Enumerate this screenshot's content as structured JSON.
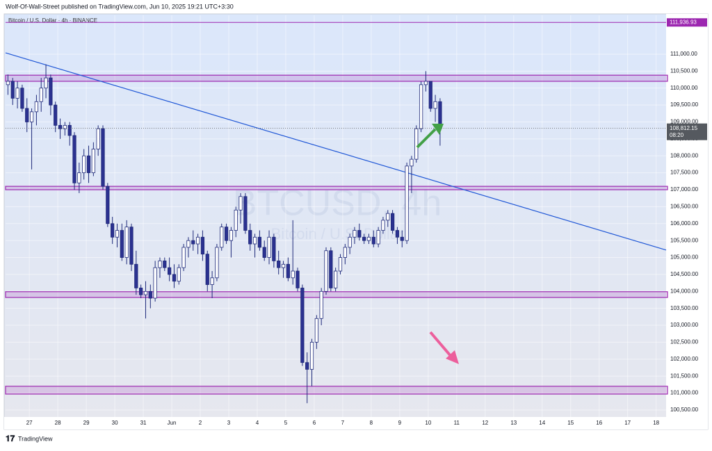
{
  "header": "Wolf-Of-Wall-Street published on TradingView.com, Jun 10, 2025 19:21 UTC+3:30",
  "footer": "TradingView",
  "chart_data": {
    "type": "candlestick",
    "symbol": "Bitcoin / U.S. Dollar · 4h · BINANCE",
    "watermark": "BTCUSD, 4h",
    "watermark_sub": "Bitcoin / U.S. Dollar",
    "candles": [
      [
        110100,
        110400,
        109800,
        110200
      ],
      [
        110200,
        110300,
        109500,
        109700
      ],
      [
        109700,
        110200,
        109400,
        110000
      ],
      [
        110000,
        110100,
        109300,
        109400
      ],
      [
        109400,
        109700,
        108700,
        109000
      ],
      [
        109000,
        109400,
        107600,
        109300
      ],
      [
        109300,
        109800,
        108900,
        109600
      ],
      [
        109600,
        110300,
        109300,
        110000
      ],
      [
        110000,
        110700,
        109700,
        110300
      ],
      [
        110300,
        110400,
        109200,
        109500
      ],
      [
        109500,
        109600,
        108700,
        108900
      ],
      [
        108900,
        109100,
        108500,
        108800
      ],
      [
        108800,
        109000,
        108600,
        108900
      ],
      [
        108900,
        109000,
        108300,
        108600
      ],
      [
        108600,
        108700,
        107000,
        107200
      ],
      [
        107200,
        107800,
        106900,
        107500
      ],
      [
        107500,
        108200,
        107300,
        108000
      ],
      [
        108000,
        108300,
        107200,
        107500
      ],
      [
        107500,
        108400,
        107400,
        108200
      ],
      [
        108200,
        108900,
        108000,
        108800
      ],
      [
        108800,
        108900,
        107000,
        107100
      ],
      [
        107100,
        107200,
        105900,
        106000
      ],
      [
        106000,
        106200,
        105400,
        105600
      ],
      [
        105600,
        106000,
        105300,
        105800
      ],
      [
        105800,
        106000,
        104900,
        105000
      ],
      [
        105000,
        106100,
        104800,
        105900
      ],
      [
        105900,
        106000,
        104600,
        104800
      ],
      [
        104800,
        105200,
        103900,
        104100
      ],
      [
        104100,
        104200,
        103800,
        103900
      ],
      [
        103900,
        104300,
        103200,
        104000
      ],
      [
        104000,
        104200,
        103500,
        103800
      ],
      [
        103800,
        104900,
        103700,
        104700
      ],
      [
        104700,
        105000,
        104400,
        104900
      ],
      [
        104900,
        105000,
        104600,
        104700
      ],
      [
        104700,
        105000,
        104300,
        104500
      ],
      [
        104500,
        104800,
        104100,
        104300
      ],
      [
        104300,
        104800,
        104200,
        104700
      ],
      [
        104700,
        105400,
        104600,
        105300
      ],
      [
        105300,
        105600,
        105000,
        105500
      ],
      [
        105500,
        105800,
        105200,
        105400
      ],
      [
        105400,
        105700,
        105100,
        105600
      ],
      [
        105600,
        105800,
        104900,
        105100
      ],
      [
        105100,
        105200,
        104000,
        104200
      ],
      [
        104200,
        104600,
        103800,
        104400
      ],
      [
        104400,
        105400,
        104300,
        105300
      ],
      [
        105300,
        106000,
        105200,
        105900
      ],
      [
        105900,
        106000,
        105400,
        105500
      ],
      [
        105500,
        105900,
        105000,
        105800
      ],
      [
        105800,
        106500,
        105600,
        106400
      ],
      [
        106400,
        106900,
        106000,
        106800
      ],
      [
        106800,
        106900,
        105700,
        105800
      ],
      [
        105800,
        106000,
        105200,
        105400
      ],
      [
        105400,
        105700,
        105000,
        105600
      ],
      [
        105600,
        105800,
        105200,
        105300
      ],
      [
        105300,
        105500,
        104900,
        105000
      ],
      [
        105000,
        105800,
        104800,
        105600
      ],
      [
        105600,
        105700,
        104700,
        104900
      ],
      [
        104900,
        105200,
        104500,
        104700
      ],
      [
        104700,
        104900,
        104400,
        104800
      ],
      [
        104800,
        105000,
        104300,
        104400
      ],
      [
        104400,
        106100,
        104200,
        104600
      ],
      [
        104600,
        104700,
        104000,
        104100
      ],
      [
        104100,
        104200,
        101800,
        101900
      ],
      [
        101900,
        102200,
        100700,
        101700
      ],
      [
        101700,
        102600,
        101200,
        102500
      ],
      [
        102500,
        103300,
        102300,
        103200
      ],
      [
        103200,
        104100,
        103000,
        104000
      ],
      [
        104000,
        105300,
        103900,
        105200
      ],
      [
        105200,
        105300,
        104000,
        104100
      ],
      [
        104100,
        104700,
        104000,
        104600
      ],
      [
        104600,
        105100,
        104500,
        105000
      ],
      [
        105000,
        105400,
        104800,
        105300
      ],
      [
        105300,
        105700,
        105100,
        105600
      ],
      [
        105600,
        105900,
        105400,
        105800
      ],
      [
        105800,
        106000,
        105500,
        105600
      ],
      [
        105600,
        105700,
        105400,
        105500
      ],
      [
        105500,
        105700,
        105400,
        105600
      ],
      [
        105600,
        105800,
        105300,
        105400
      ],
      [
        105400,
        105900,
        105300,
        105800
      ],
      [
        105800,
        106200,
        105700,
        106100
      ],
      [
        106100,
        106400,
        105900,
        106300
      ],
      [
        106300,
        106400,
        105700,
        105800
      ],
      [
        105800,
        105900,
        105400,
        105600
      ],
      [
        105600,
        105800,
        105300,
        105500
      ],
      [
        105500,
        107800,
        105400,
        107700
      ],
      [
        107700,
        108000,
        106900,
        107900
      ],
      [
        107900,
        108900,
        107800,
        108800
      ],
      [
        108800,
        110200,
        108700,
        110100
      ],
      [
        110100,
        110500,
        109900,
        110200
      ],
      [
        110200,
        110200,
        109300,
        109400
      ],
      [
        109400,
        109800,
        109000,
        109600
      ],
      [
        109600,
        109700,
        108300,
        108812.15
      ]
    ],
    "up_color": "#ffffff",
    "down_color": "#2b3190",
    "outline_color": "#1f2a7a",
    "xlim": [
      -0.5,
      138.6
    ],
    "xticks": [
      {
        "value": 4.5,
        "label": "27"
      },
      {
        "value": 10.5,
        "label": "28"
      },
      {
        "value": 16.5,
        "label": "29"
      },
      {
        "value": 22.5,
        "label": "30"
      },
      {
        "value": 28.5,
        "label": "31"
      },
      {
        "value": 34.5,
        "label": "Jun"
      },
      {
        "value": 40.5,
        "label": "2"
      },
      {
        "value": 46.5,
        "label": "3"
      },
      {
        "value": 52.5,
        "label": "4"
      },
      {
        "value": 58.5,
        "label": "5"
      },
      {
        "value": 64.5,
        "label": "6"
      },
      {
        "value": 70.5,
        "label": "7"
      },
      {
        "value": 76.5,
        "label": "8"
      },
      {
        "value": 82.5,
        "label": "9"
      },
      {
        "value": 88.5,
        "label": "10"
      },
      {
        "value": 94.5,
        "label": "11"
      },
      {
        "value": 100.5,
        "label": "12"
      },
      {
        "value": 106.5,
        "label": "13"
      },
      {
        "value": 112.5,
        "label": "14"
      },
      {
        "value": 118.5,
        "label": "15"
      },
      {
        "value": 124.5,
        "label": "16"
      },
      {
        "value": 130.5,
        "label": "17"
      },
      {
        "value": 136.5,
        "label": "18"
      }
    ],
    "ylim": [
      100294,
      112148
    ],
    "yticks": [
      {
        "value": 100500,
        "label": "100,500.00"
      },
      {
        "value": 101000,
        "label": "101,000.00"
      },
      {
        "value": 101500,
        "label": "101,500.00"
      },
      {
        "value": 102000,
        "label": "102,000.00"
      },
      {
        "value": 102500,
        "label": "102,500.00"
      },
      {
        "value": 103000,
        "label": "103,000.00"
      },
      {
        "value": 103500,
        "label": "103,500.00"
      },
      {
        "value": 104000,
        "label": "104,000.00"
      },
      {
        "value": 104500,
        "label": "104,500.00"
      },
      {
        "value": 105000,
        "label": "105,000.00"
      },
      {
        "value": 105500,
        "label": "105,500.00"
      },
      {
        "value": 106000,
        "label": "106,000.00"
      },
      {
        "value": 106500,
        "label": "106,500.00"
      },
      {
        "value": 107000,
        "label": "107,000.00"
      },
      {
        "value": 107500,
        "label": "107,500.00"
      },
      {
        "value": 108000,
        "label": "108,000.00"
      },
      {
        "value": 108500,
        "label": "108,500.00"
      },
      {
        "value": 109000,
        "label": "109,000.00"
      },
      {
        "value": 109500,
        "label": "109,500.00"
      },
      {
        "value": 110000,
        "label": "110,000.00"
      },
      {
        "value": 110500,
        "label": "110,500.00"
      },
      {
        "value": 111000,
        "label": "111,000.00"
      }
    ],
    "grid": true,
    "zones": [
      [
        110200,
        110380
      ],
      [
        107000,
        107100
      ],
      [
        103820,
        103990
      ],
      [
        100970,
        101200
      ]
    ],
    "zone_color": "#9c27b0",
    "level": {
      "value": 111936.93,
      "label": "111,936.93"
    },
    "trendline": {
      "x": [
        -0.5,
        138.6
      ],
      "y": [
        111040,
        105220
      ],
      "color": "#1e56d6"
    },
    "last_price": {
      "value": 108812.15,
      "label": "108,812.15"
    },
    "countdown": "08:20"
  }
}
